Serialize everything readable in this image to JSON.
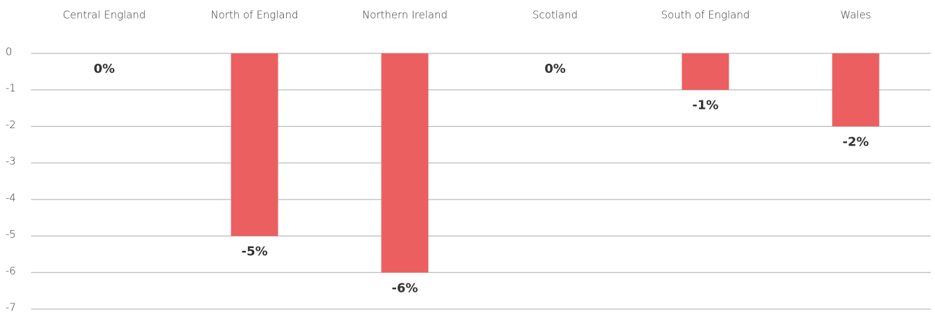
{
  "chart_data": {
    "type": "bar",
    "categories": [
      "Central England",
      "North of England",
      "Northern Ireland",
      "Scotland",
      "South of England",
      "Wales"
    ],
    "values": [
      0,
      -5,
      -6,
      0,
      -1,
      -2
    ],
    "value_labels": [
      "0%",
      "-5%",
      "-6%",
      "0%",
      "-1%",
      "-2%"
    ],
    "color": "#eb5f61",
    "ylim": [
      -7,
      0
    ],
    "yticks": [
      0,
      -1,
      -2,
      -3,
      -4,
      -5,
      -6,
      -7
    ],
    "grid": true
  }
}
